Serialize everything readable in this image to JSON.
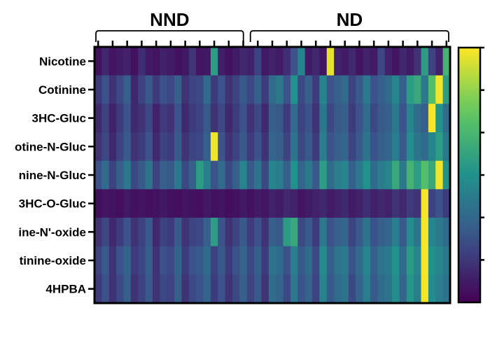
{
  "chart_data": {
    "type": "heatmap",
    "groups": [
      {
        "label": "NND",
        "n_columns": 21
      },
      {
        "label": "ND",
        "n_columns": 28
      }
    ],
    "rows": [
      "Nicotine",
      "Cotinine",
      "3HC-Gluc",
      "Cotinine-N-Gluc",
      "Nicotine-N-Gluc",
      "3HC-O-Gluc",
      "Nicotine-N'-oxide",
      "Cotinine-oxide",
      "4HPBA"
    ],
    "row_labels_visible": [
      "Nicotine",
      "Cotinine",
      "3HC-Gluc",
      "otine-N-Gluc",
      "nine-N-Gluc",
      "3HC-O-Gluc",
      "ine-N'-oxide",
      "tinine-oxide",
      "4HPBA"
    ],
    "value_range": [
      0,
      1
    ],
    "colormap": "viridis (dark purple = low, yellow = high)",
    "colors": {
      "low": "#440154",
      "mid": "#21918c",
      "high": "#fde725"
    },
    "colorbar_ticks": 6,
    "values": [
      [
        0.05,
        0.12,
        0.06,
        0.08,
        0.1,
        0.05,
        0.14,
        0.07,
        0.06,
        0.1,
        0.08,
        0.05,
        0.07,
        0.16,
        0.06,
        0.07,
        0.55,
        0.09,
        0.05,
        0.08,
        0.12,
        0.1,
        0.2,
        0.07,
        0.1,
        0.08,
        0.14,
        0.25,
        0.45,
        0.08,
        0.12,
        0.06,
        0.96,
        0.1,
        0.08,
        0.12,
        0.06,
        0.1,
        0.08,
        0.22,
        0.1,
        0.06,
        0.12,
        0.08,
        0.15,
        0.55,
        0.2,
        0.1,
        0.65
      ],
      [
        0.18,
        0.25,
        0.15,
        0.22,
        0.3,
        0.12,
        0.2,
        0.28,
        0.18,
        0.25,
        0.22,
        0.3,
        0.15,
        0.2,
        0.22,
        0.35,
        0.18,
        0.25,
        0.15,
        0.2,
        0.28,
        0.22,
        0.3,
        0.18,
        0.35,
        0.4,
        0.25,
        0.5,
        0.22,
        0.3,
        0.18,
        0.45,
        0.25,
        0.3,
        0.35,
        0.2,
        0.28,
        0.4,
        0.25,
        0.3,
        0.35,
        0.45,
        0.3,
        0.55,
        0.6,
        0.4,
        0.7,
        0.98,
        0.55
      ],
      [
        0.12,
        0.2,
        0.1,
        0.18,
        0.25,
        0.12,
        0.15,
        0.22,
        0.1,
        0.18,
        0.15,
        0.25,
        0.12,
        0.18,
        0.2,
        0.28,
        0.15,
        0.22,
        0.12,
        0.18,
        0.25,
        0.15,
        0.22,
        0.12,
        0.3,
        0.28,
        0.18,
        0.35,
        0.2,
        0.25,
        0.15,
        0.4,
        0.22,
        0.28,
        0.3,
        0.18,
        0.25,
        0.35,
        0.22,
        0.28,
        0.3,
        0.4,
        0.25,
        0.45,
        0.35,
        0.3,
        0.99,
        0.5,
        0.35
      ],
      [
        0.15,
        0.22,
        0.12,
        0.2,
        0.28,
        0.15,
        0.18,
        0.25,
        0.12,
        0.2,
        0.18,
        0.28,
        0.15,
        0.2,
        0.22,
        0.3,
        0.98,
        0.25,
        0.15,
        0.2,
        0.28,
        0.18,
        0.25,
        0.15,
        0.32,
        0.3,
        0.2,
        0.38,
        0.22,
        0.28,
        0.18,
        0.42,
        0.25,
        0.3,
        0.32,
        0.2,
        0.28,
        0.38,
        0.25,
        0.3,
        0.32,
        0.42,
        0.28,
        0.48,
        0.38,
        0.35,
        0.45,
        0.55,
        0.4
      ],
      [
        0.25,
        0.35,
        0.2,
        0.3,
        0.4,
        0.22,
        0.28,
        0.38,
        0.2,
        0.3,
        0.28,
        0.4,
        0.22,
        0.3,
        0.55,
        0.42,
        0.25,
        0.35,
        0.22,
        0.3,
        0.45,
        0.28,
        0.38,
        0.22,
        0.45,
        0.42,
        0.3,
        0.5,
        0.32,
        0.4,
        0.28,
        0.55,
        0.35,
        0.42,
        0.45,
        0.3,
        0.4,
        0.5,
        0.35,
        0.42,
        0.45,
        0.6,
        0.4,
        0.65,
        0.55,
        0.7,
        0.6,
        0.98,
        0.5
      ],
      [
        0.04,
        0.06,
        0.05,
        0.04,
        0.07,
        0.05,
        0.06,
        0.04,
        0.05,
        0.07,
        0.05,
        0.04,
        0.06,
        0.05,
        0.04,
        0.07,
        0.05,
        0.06,
        0.04,
        0.05,
        0.07,
        0.05,
        0.08,
        0.06,
        0.1,
        0.08,
        0.12,
        0.1,
        0.06,
        0.08,
        0.1,
        0.12,
        0.08,
        0.1,
        0.12,
        0.08,
        0.1,
        0.14,
        0.1,
        0.12,
        0.1,
        0.15,
        0.12,
        0.18,
        0.15,
        0.99,
        0.2,
        0.25,
        0.18
      ],
      [
        0.15,
        0.22,
        0.12,
        0.18,
        0.25,
        0.15,
        0.2,
        0.28,
        0.12,
        0.2,
        0.18,
        0.28,
        0.15,
        0.2,
        0.22,
        0.3,
        0.55,
        0.25,
        0.15,
        0.2,
        0.28,
        0.18,
        0.25,
        0.15,
        0.3,
        0.28,
        0.55,
        0.6,
        0.22,
        0.28,
        0.18,
        0.4,
        0.25,
        0.3,
        0.32,
        0.2,
        0.28,
        0.38,
        0.25,
        0.3,
        0.32,
        0.42,
        0.28,
        0.48,
        0.38,
        0.99,
        0.45,
        0.4,
        0.35
      ],
      [
        0.2,
        0.28,
        0.15,
        0.25,
        0.32,
        0.18,
        0.22,
        0.3,
        0.15,
        0.25,
        0.22,
        0.32,
        0.18,
        0.25,
        0.28,
        0.35,
        0.2,
        0.28,
        0.18,
        0.25,
        0.32,
        0.22,
        0.3,
        0.18,
        0.38,
        0.35,
        0.25,
        0.42,
        0.28,
        0.35,
        0.22,
        0.48,
        0.3,
        0.38,
        0.4,
        0.25,
        0.35,
        0.45,
        0.3,
        0.38,
        0.4,
        0.5,
        0.35,
        0.55,
        0.45,
        0.99,
        0.5,
        0.45,
        0.4
      ],
      [
        0.18,
        0.25,
        0.15,
        0.22,
        0.3,
        0.15,
        0.2,
        0.28,
        0.15,
        0.22,
        0.2,
        0.3,
        0.15,
        0.22,
        0.25,
        0.32,
        0.18,
        0.25,
        0.15,
        0.22,
        0.3,
        0.2,
        0.28,
        0.15,
        0.35,
        0.32,
        0.22,
        0.4,
        0.25,
        0.32,
        0.2,
        0.45,
        0.28,
        0.35,
        0.38,
        0.22,
        0.32,
        0.42,
        0.28,
        0.35,
        0.38,
        0.48,
        0.32,
        0.52,
        0.42,
        0.99,
        0.48,
        0.42,
        0.38
      ]
    ]
  }
}
